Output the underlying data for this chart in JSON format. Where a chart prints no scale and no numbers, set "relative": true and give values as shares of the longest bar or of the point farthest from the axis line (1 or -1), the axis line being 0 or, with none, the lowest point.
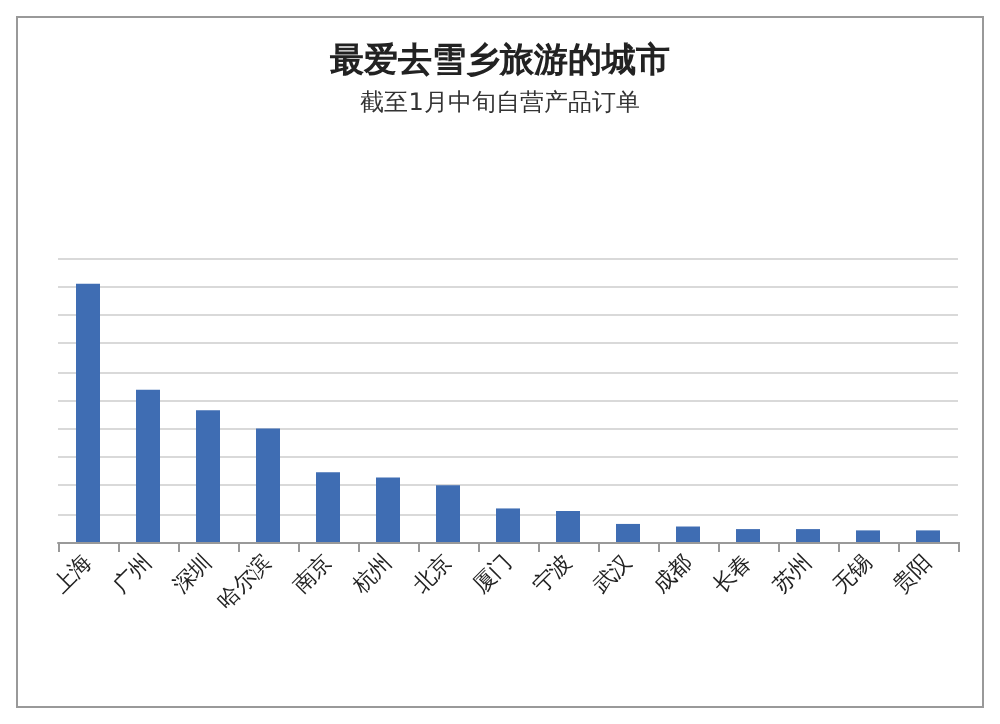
{
  "chart_data": {
    "type": "bar",
    "title": "最爱去雪乡旅游的城市",
    "subtitle": "截至1月中旬自营产品订单",
    "categories": [
      "上海",
      "广州",
      "深圳",
      "哈尔滨",
      "南京",
      "杭州",
      "北京",
      "厦门",
      "宁波",
      "武汉",
      "成都",
      "长春",
      "苏州",
      "无锡",
      "贵阳"
    ],
    "values": [
      1,
      0.59,
      0.51,
      0.44,
      0.27,
      0.25,
      0.22,
      0.13,
      0.12,
      0.07,
      0.06,
      0.05,
      0.05,
      0.045,
      0.045
    ],
    "color": "#3f6db3",
    "relative": true,
    "grid": "y"
  }
}
